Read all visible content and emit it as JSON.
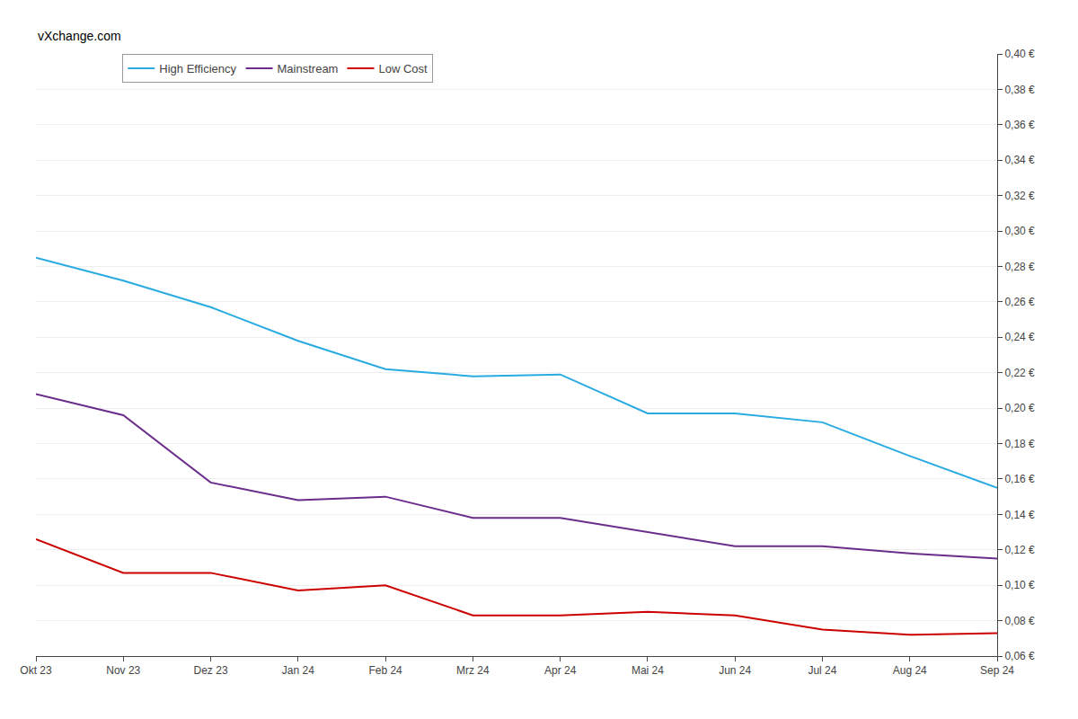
{
  "chart_data": {
    "type": "line",
    "categories": [
      "Okt 23",
      "Nov 23",
      "Dez 23",
      "Jan 24",
      "Feb 24",
      "Mrz 24",
      "Apr 24",
      "Mai 24",
      "Jun 24",
      "Jul 24",
      "Aug 24",
      "Sep 24"
    ],
    "series": [
      {
        "name": "High Efficiency",
        "color": "#29ABE2",
        "values": [
          0.285,
          0.272,
          0.257,
          0.238,
          0.222,
          0.218,
          0.219,
          0.197,
          0.197,
          0.192,
          0.173,
          0.155
        ]
      },
      {
        "name": "Mainstream",
        "color": "#6B2D8B",
        "values": [
          0.208,
          0.196,
          0.158,
          0.148,
          0.15,
          0.138,
          0.138,
          0.13,
          0.122,
          0.122,
          0.118,
          0.115
        ]
      },
      {
        "name": "Low Cost",
        "color": "#CC0000",
        "values": [
          0.126,
          0.107,
          0.107,
          0.097,
          0.1,
          0.083,
          0.083,
          0.085,
          0.083,
          0.075,
          0.072,
          0.073
        ]
      }
    ],
    "ylim": [
      0.06,
      0.4
    ],
    "yticks": [
      {
        "value": 0.06,
        "label": "0,06 €"
      },
      {
        "value": 0.08,
        "label": "0,08 €"
      },
      {
        "value": 0.1,
        "label": "0,10 €"
      },
      {
        "value": 0.12,
        "label": "0,12 €"
      },
      {
        "value": 0.14,
        "label": "0,14 €"
      },
      {
        "value": 0.16,
        "label": "0,16 €"
      },
      {
        "value": 0.18,
        "label": "0,18 €"
      },
      {
        "value": 0.2,
        "label": "0,20 €"
      },
      {
        "value": 0.22,
        "label": "0,22 €"
      },
      {
        "value": 0.24,
        "label": "0,24 €"
      },
      {
        "value": 0.26,
        "label": "0,26 €"
      },
      {
        "value": 0.28,
        "label": "0,28 €"
      },
      {
        "value": 0.3,
        "label": "0,30 €"
      },
      {
        "value": 0.32,
        "label": "0,32 €"
      },
      {
        "value": 0.34,
        "label": "0,34 €"
      },
      {
        "value": 0.36,
        "label": "0,36 €"
      },
      {
        "value": 0.38,
        "label": "0,38 €"
      },
      {
        "value": 0.4,
        "label": "0,40 €"
      }
    ],
    "grid": true,
    "legend": "top",
    "annotations": [
      "vXchange.com"
    ]
  }
}
